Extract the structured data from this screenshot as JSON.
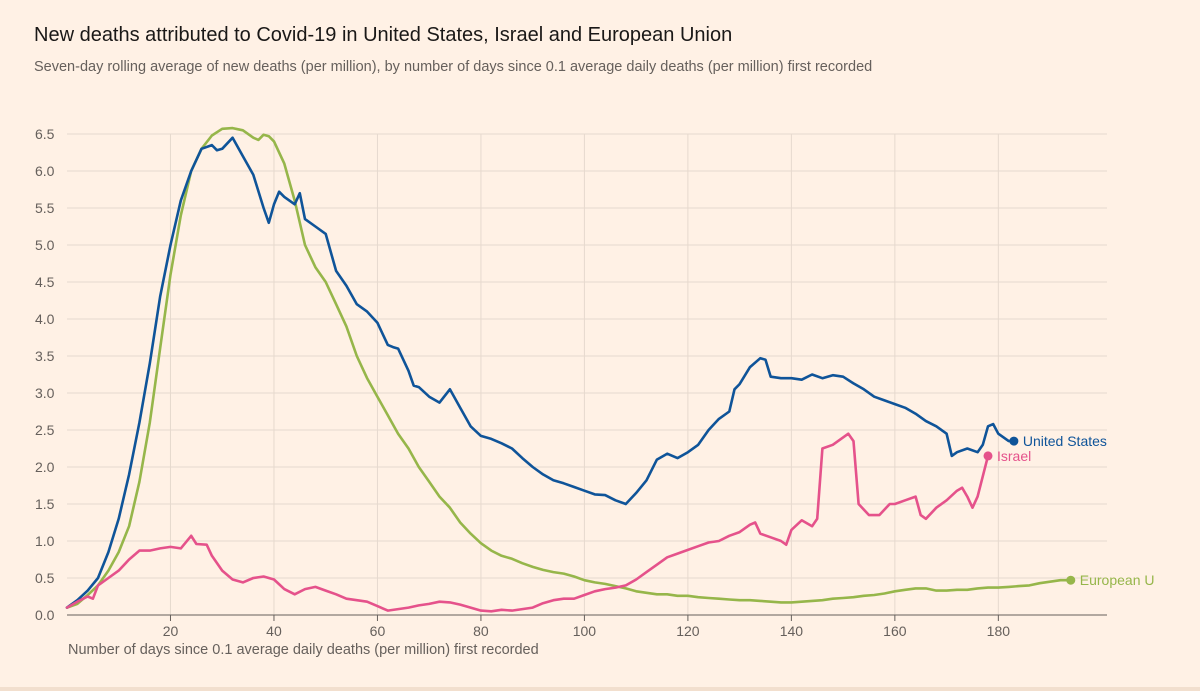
{
  "chart_data": {
    "type": "line",
    "title": "New deaths attributed to Covid-19 in United States, Israel and European Union",
    "subtitle": "Seven-day rolling average of new deaths (per million), by number of days since 0.1 average daily deaths (per million) first recorded",
    "xlabel": "Number of days since 0.1 average daily deaths (per million) first recorded",
    "ylabel": "",
    "xlim": [
      0,
      201
    ],
    "ylim": [
      0,
      6.5
    ],
    "x_ticks": [
      20,
      40,
      60,
      80,
      100,
      120,
      140,
      160,
      180
    ],
    "y_ticks": [
      0.0,
      0.5,
      1.0,
      1.5,
      2.0,
      2.5,
      3.0,
      3.5,
      4.0,
      4.5,
      5.0,
      5.5,
      6.0,
      6.5
    ],
    "y_tick_labels": [
      "0.0",
      "0.5",
      "1.0",
      "1.5",
      "2.0",
      "2.5",
      "3.0",
      "3.5",
      "4.0",
      "4.5",
      "5.0",
      "5.5",
      "6.0",
      "6.5"
    ],
    "grid": true,
    "series": [
      {
        "name": "European Union",
        "label": "European U",
        "color": "#96b64a",
        "points": [
          [
            0,
            0.1
          ],
          [
            2,
            0.15
          ],
          [
            4,
            0.27
          ],
          [
            6,
            0.4
          ],
          [
            8,
            0.6
          ],
          [
            10,
            0.85
          ],
          [
            12,
            1.2
          ],
          [
            14,
            1.8
          ],
          [
            16,
            2.6
          ],
          [
            18,
            3.6
          ],
          [
            20,
            4.6
          ],
          [
            22,
            5.4
          ],
          [
            24,
            6.0
          ],
          [
            26,
            6.3
          ],
          [
            28,
            6.48
          ],
          [
            30,
            6.57
          ],
          [
            32,
            6.58
          ],
          [
            34,
            6.55
          ],
          [
            36,
            6.45
          ],
          [
            37,
            6.42
          ],
          [
            38,
            6.49
          ],
          [
            39,
            6.47
          ],
          [
            40,
            6.4
          ],
          [
            42,
            6.1
          ],
          [
            44,
            5.6
          ],
          [
            46,
            5.0
          ],
          [
            48,
            4.7
          ],
          [
            50,
            4.5
          ],
          [
            52,
            4.2
          ],
          [
            54,
            3.9
          ],
          [
            56,
            3.5
          ],
          [
            58,
            3.2
          ],
          [
            60,
            2.95
          ],
          [
            62,
            2.7
          ],
          [
            64,
            2.45
          ],
          [
            66,
            2.25
          ],
          [
            68,
            2.0
          ],
          [
            70,
            1.8
          ],
          [
            72,
            1.6
          ],
          [
            74,
            1.45
          ],
          [
            76,
            1.25
          ],
          [
            78,
            1.1
          ],
          [
            80,
            0.97
          ],
          [
            82,
            0.87
          ],
          [
            84,
            0.8
          ],
          [
            86,
            0.76
          ],
          [
            88,
            0.7
          ],
          [
            90,
            0.65
          ],
          [
            92,
            0.61
          ],
          [
            94,
            0.58
          ],
          [
            96,
            0.56
          ],
          [
            98,
            0.52
          ],
          [
            100,
            0.47
          ],
          [
            102,
            0.44
          ],
          [
            104,
            0.42
          ],
          [
            106,
            0.39
          ],
          [
            108,
            0.36
          ],
          [
            110,
            0.32
          ],
          [
            112,
            0.3
          ],
          [
            114,
            0.28
          ],
          [
            116,
            0.28
          ],
          [
            118,
            0.26
          ],
          [
            120,
            0.26
          ],
          [
            122,
            0.24
          ],
          [
            124,
            0.23
          ],
          [
            126,
            0.22
          ],
          [
            128,
            0.21
          ],
          [
            130,
            0.2
          ],
          [
            132,
            0.2
          ],
          [
            134,
            0.19
          ],
          [
            136,
            0.18
          ],
          [
            138,
            0.17
          ],
          [
            140,
            0.17
          ],
          [
            142,
            0.18
          ],
          [
            144,
            0.19
          ],
          [
            146,
            0.2
          ],
          [
            148,
            0.22
          ],
          [
            150,
            0.23
          ],
          [
            152,
            0.24
          ],
          [
            154,
            0.26
          ],
          [
            156,
            0.27
          ],
          [
            158,
            0.29
          ],
          [
            160,
            0.32
          ],
          [
            162,
            0.34
          ],
          [
            164,
            0.36
          ],
          [
            166,
            0.36
          ],
          [
            168,
            0.33
          ],
          [
            170,
            0.33
          ],
          [
            172,
            0.34
          ],
          [
            174,
            0.34
          ],
          [
            176,
            0.36
          ],
          [
            178,
            0.37
          ],
          [
            180,
            0.37
          ],
          [
            182,
            0.38
          ],
          [
            184,
            0.39
          ],
          [
            186,
            0.4
          ],
          [
            188,
            0.43
          ],
          [
            190,
            0.45
          ],
          [
            192,
            0.47
          ],
          [
            194,
            0.47
          ]
        ]
      },
      {
        "name": "United States",
        "label": "United States",
        "color": "#0f5499",
        "points": [
          [
            0,
            0.1
          ],
          [
            2,
            0.2
          ],
          [
            4,
            0.33
          ],
          [
            6,
            0.5
          ],
          [
            8,
            0.85
          ],
          [
            10,
            1.3
          ],
          [
            12,
            1.9
          ],
          [
            14,
            2.6
          ],
          [
            16,
            3.4
          ],
          [
            18,
            4.3
          ],
          [
            20,
            5.0
          ],
          [
            22,
            5.6
          ],
          [
            24,
            6.0
          ],
          [
            26,
            6.3
          ],
          [
            28,
            6.35
          ],
          [
            29,
            6.28
          ],
          [
            30,
            6.3
          ],
          [
            32,
            6.45
          ],
          [
            34,
            6.2
          ],
          [
            36,
            5.95
          ],
          [
            38,
            5.5
          ],
          [
            39,
            5.3
          ],
          [
            40,
            5.55
          ],
          [
            41,
            5.72
          ],
          [
            42,
            5.65
          ],
          [
            44,
            5.55
          ],
          [
            45,
            5.7
          ],
          [
            46,
            5.35
          ],
          [
            48,
            5.25
          ],
          [
            50,
            5.15
          ],
          [
            52,
            4.65
          ],
          [
            54,
            4.45
          ],
          [
            56,
            4.2
          ],
          [
            58,
            4.1
          ],
          [
            60,
            3.95
          ],
          [
            62,
            3.65
          ],
          [
            63,
            3.62
          ],
          [
            64,
            3.6
          ],
          [
            66,
            3.3
          ],
          [
            67,
            3.1
          ],
          [
            68,
            3.08
          ],
          [
            70,
            2.95
          ],
          [
            72,
            2.87
          ],
          [
            74,
            3.05
          ],
          [
            76,
            2.8
          ],
          [
            78,
            2.55
          ],
          [
            80,
            2.42
          ],
          [
            82,
            2.38
          ],
          [
            84,
            2.32
          ],
          [
            86,
            2.25
          ],
          [
            88,
            2.12
          ],
          [
            90,
            2.0
          ],
          [
            92,
            1.9
          ],
          [
            94,
            1.82
          ],
          [
            96,
            1.78
          ],
          [
            98,
            1.73
          ],
          [
            100,
            1.68
          ],
          [
            102,
            1.63
          ],
          [
            104,
            1.62
          ],
          [
            106,
            1.55
          ],
          [
            108,
            1.5
          ],
          [
            110,
            1.65
          ],
          [
            112,
            1.82
          ],
          [
            114,
            2.1
          ],
          [
            116,
            2.18
          ],
          [
            118,
            2.12
          ],
          [
            120,
            2.2
          ],
          [
            122,
            2.3
          ],
          [
            124,
            2.5
          ],
          [
            126,
            2.65
          ],
          [
            128,
            2.75
          ],
          [
            129,
            3.05
          ],
          [
            130,
            3.12
          ],
          [
            132,
            3.35
          ],
          [
            134,
            3.47
          ],
          [
            135,
            3.45
          ],
          [
            136,
            3.22
          ],
          [
            138,
            3.2
          ],
          [
            140,
            3.2
          ],
          [
            142,
            3.18
          ],
          [
            144,
            3.25
          ],
          [
            146,
            3.2
          ],
          [
            148,
            3.24
          ],
          [
            150,
            3.22
          ],
          [
            152,
            3.13
          ],
          [
            154,
            3.05
          ],
          [
            156,
            2.95
          ],
          [
            158,
            2.9
          ],
          [
            160,
            2.85
          ],
          [
            162,
            2.8
          ],
          [
            164,
            2.72
          ],
          [
            166,
            2.62
          ],
          [
            168,
            2.55
          ],
          [
            170,
            2.45
          ],
          [
            171,
            2.15
          ],
          [
            172,
            2.2
          ],
          [
            174,
            2.25
          ],
          [
            176,
            2.2
          ],
          [
            177,
            2.3
          ],
          [
            178,
            2.55
          ],
          [
            179,
            2.58
          ],
          [
            180,
            2.45
          ],
          [
            182,
            2.35
          ],
          [
            183,
            2.35
          ]
        ]
      },
      {
        "name": "Israel",
        "label": "Israel",
        "color": "#e5528b",
        "points": [
          [
            0,
            0.1
          ],
          [
            2,
            0.18
          ],
          [
            4,
            0.25
          ],
          [
            5,
            0.22
          ],
          [
            6,
            0.4
          ],
          [
            8,
            0.5
          ],
          [
            10,
            0.6
          ],
          [
            12,
            0.75
          ],
          [
            14,
            0.87
          ],
          [
            16,
            0.87
          ],
          [
            18,
            0.9
          ],
          [
            20,
            0.92
          ],
          [
            22,
            0.9
          ],
          [
            24,
            1.07
          ],
          [
            25,
            0.96
          ],
          [
            27,
            0.95
          ],
          [
            28,
            0.8
          ],
          [
            30,
            0.6
          ],
          [
            32,
            0.48
          ],
          [
            34,
            0.44
          ],
          [
            36,
            0.5
          ],
          [
            38,
            0.52
          ],
          [
            40,
            0.48
          ],
          [
            42,
            0.35
          ],
          [
            44,
            0.28
          ],
          [
            46,
            0.35
          ],
          [
            48,
            0.38
          ],
          [
            50,
            0.33
          ],
          [
            52,
            0.28
          ],
          [
            54,
            0.22
          ],
          [
            56,
            0.2
          ],
          [
            58,
            0.18
          ],
          [
            60,
            0.12
          ],
          [
            62,
            0.06
          ],
          [
            64,
            0.08
          ],
          [
            66,
            0.1
          ],
          [
            68,
            0.13
          ],
          [
            70,
            0.15
          ],
          [
            72,
            0.18
          ],
          [
            74,
            0.17
          ],
          [
            76,
            0.14
          ],
          [
            78,
            0.1
          ],
          [
            80,
            0.06
          ],
          [
            82,
            0.05
          ],
          [
            84,
            0.07
          ],
          [
            86,
            0.06
          ],
          [
            88,
            0.08
          ],
          [
            90,
            0.1
          ],
          [
            92,
            0.16
          ],
          [
            94,
            0.2
          ],
          [
            96,
            0.22
          ],
          [
            98,
            0.22
          ],
          [
            100,
            0.27
          ],
          [
            102,
            0.32
          ],
          [
            104,
            0.35
          ],
          [
            106,
            0.37
          ],
          [
            108,
            0.4
          ],
          [
            110,
            0.48
          ],
          [
            112,
            0.58
          ],
          [
            114,
            0.68
          ],
          [
            116,
            0.78
          ],
          [
            118,
            0.83
          ],
          [
            120,
            0.88
          ],
          [
            122,
            0.93
          ],
          [
            124,
            0.98
          ],
          [
            126,
            1.0
          ],
          [
            128,
            1.07
          ],
          [
            130,
            1.12
          ],
          [
            132,
            1.22
          ],
          [
            133,
            1.25
          ],
          [
            134,
            1.1
          ],
          [
            136,
            1.05
          ],
          [
            138,
            1.0
          ],
          [
            139,
            0.95
          ],
          [
            140,
            1.15
          ],
          [
            142,
            1.28
          ],
          [
            144,
            1.2
          ],
          [
            145,
            1.3
          ],
          [
            146,
            2.25
          ],
          [
            148,
            2.3
          ],
          [
            150,
            2.4
          ],
          [
            151,
            2.45
          ],
          [
            152,
            2.35
          ],
          [
            153,
            1.5
          ],
          [
            155,
            1.35
          ],
          [
            157,
            1.35
          ],
          [
            159,
            1.5
          ],
          [
            160,
            1.5
          ],
          [
            162,
            1.55
          ],
          [
            164,
            1.6
          ],
          [
            165,
            1.35
          ],
          [
            166,
            1.3
          ],
          [
            168,
            1.45
          ],
          [
            170,
            1.55
          ],
          [
            172,
            1.68
          ],
          [
            173,
            1.72
          ],
          [
            174,
            1.6
          ],
          [
            175,
            1.45
          ],
          [
            176,
            1.6
          ],
          [
            178,
            2.15
          ]
        ]
      }
    ]
  }
}
